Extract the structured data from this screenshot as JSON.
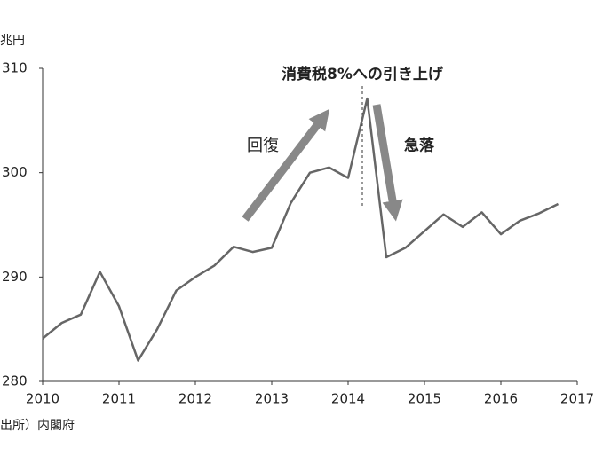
{
  "chart_data": {
    "type": "line",
    "unit_label": "兆円",
    "source": "出所）内閣府",
    "annotations": {
      "tax_hike": "消費税8%への引き上げ",
      "recovery": "回復",
      "drop": "急落"
    },
    "x": [
      2010,
      2010.25,
      2010.5,
      2010.75,
      2011,
      2011.25,
      2011.5,
      2011.75,
      2012,
      2012.25,
      2012.5,
      2012.75,
      2013,
      2013.25,
      2013.5,
      2013.75,
      2014,
      2014.25,
      2014.5,
      2014.75,
      2015,
      2015.25,
      2015.5,
      2015.75,
      2016,
      2016.25,
      2016.5,
      2016.75
    ],
    "series": [
      {
        "color": "#666666",
        "values": [
          284.1,
          285.6,
          286.4,
          290.5,
          287.2,
          282.0,
          285.0,
          288.7,
          290.0,
          291.1,
          292.9,
          292.4,
          292.8,
          297.1,
          300.0,
          300.5,
          299.5,
          307.1,
          291.9,
          292.8,
          294.4,
          296.0,
          294.8,
          296.2,
          294.1,
          295.4,
          296.1,
          297.0
        ]
      }
    ],
    "xlim": [
      2010,
      2017
    ],
    "xticks": [
      2010,
      2011,
      2012,
      2013,
      2014,
      2015,
      2016,
      2017
    ],
    "ylim": [
      280,
      310
    ],
    "yticks": [
      280,
      290,
      300,
      310
    ]
  }
}
